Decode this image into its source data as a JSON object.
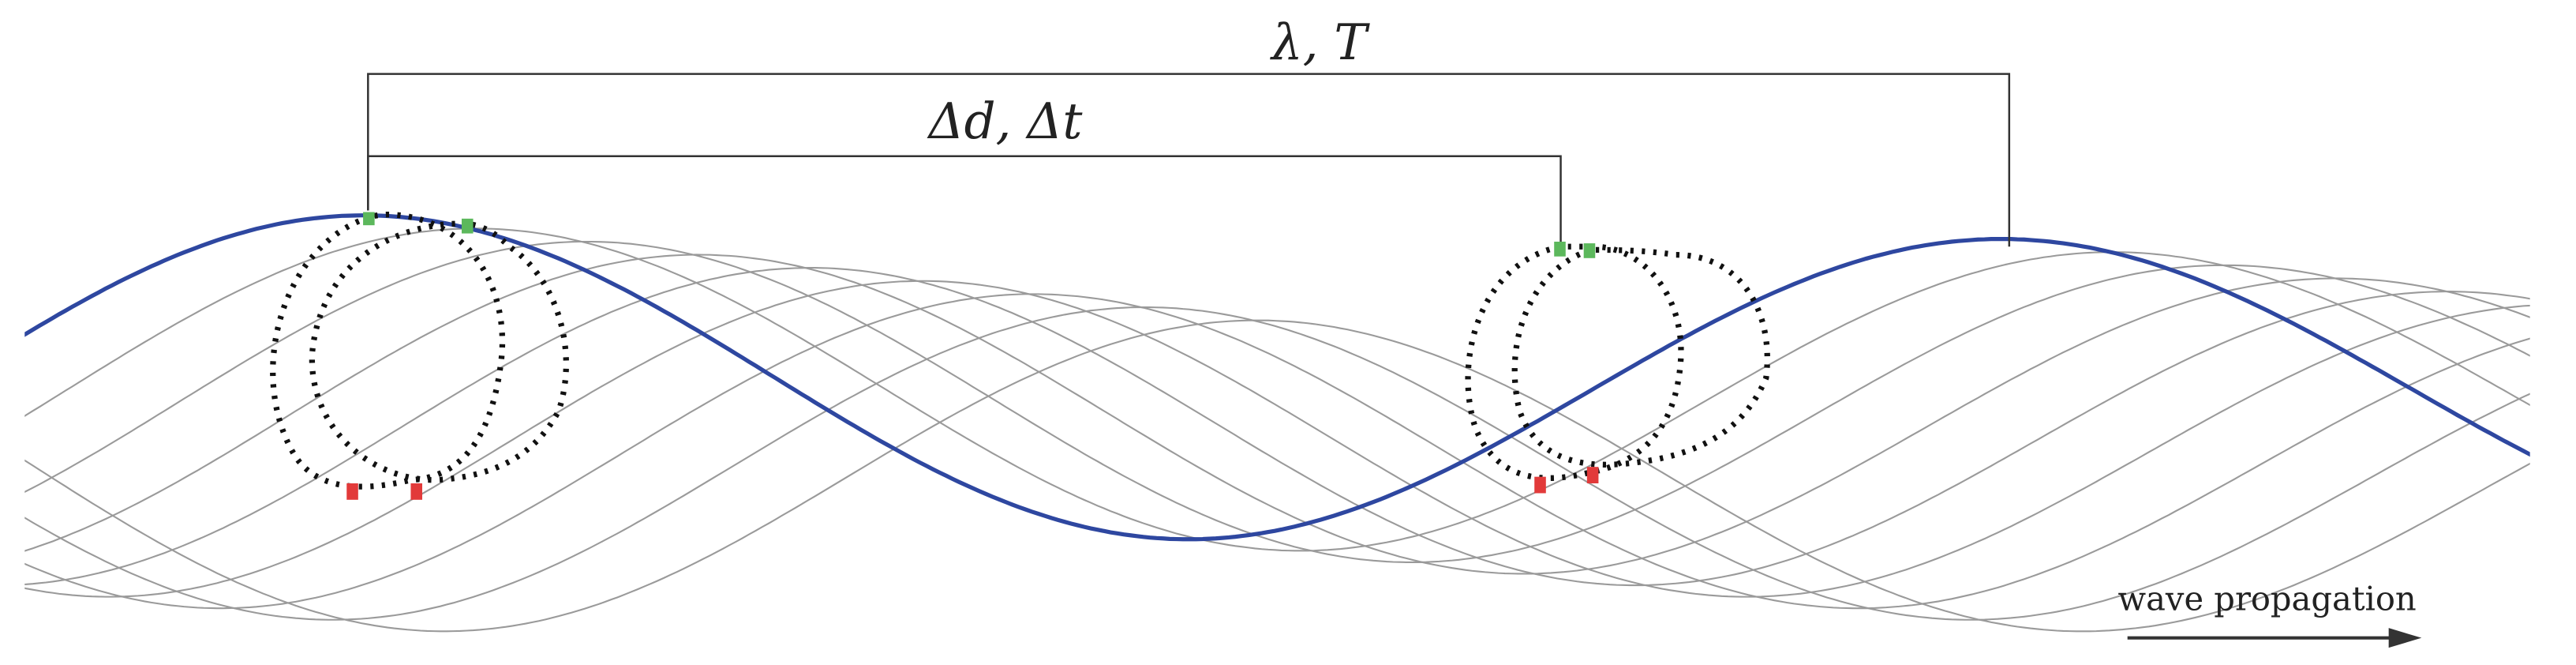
{
  "labels": {
    "wavelength": "λ, T",
    "delta": "Δd, Δt",
    "propagation": "wave propagation"
  }
}
